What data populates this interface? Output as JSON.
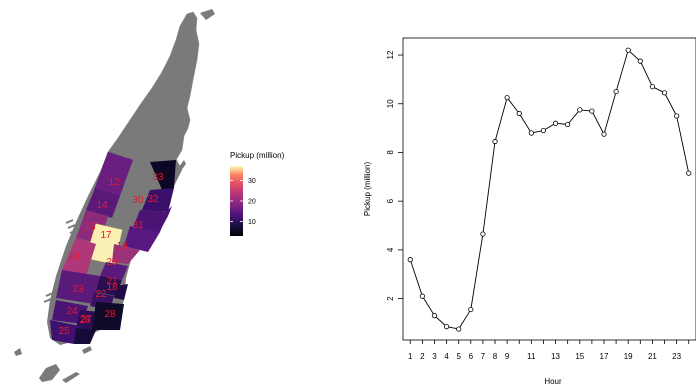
{
  "colors": {
    "land_gray": "#7a7a7a",
    "zone_label": "#e8192c",
    "line": "#000000",
    "legend_low": "#000004",
    "legend_high": "#fcfdbf"
  },
  "map": {
    "legend": {
      "title": "Pickup (million)",
      "ticks": [
        "10",
        "20",
        "30"
      ],
      "tick_values": [
        10,
        20,
        30
      ],
      "range": [
        3,
        37
      ]
    },
    "zone_labels": [
      {
        "id": "12",
        "color": "#6a1f80"
      },
      {
        "id": "33",
        "color": "#0b0724"
      },
      {
        "id": "14",
        "color": "#5c1a78"
      },
      {
        "id": "32",
        "color": "#3c0f6b"
      },
      {
        "id": "30",
        "color": "#4b1374"
      },
      {
        "id": "15",
        "color": "#8b2b7a"
      },
      {
        "id": "17",
        "color": "#fbf0b4"
      },
      {
        "id": "31",
        "color": "#571880"
      },
      {
        "id": "13",
        "color": "#b0377a"
      },
      {
        "id": "19",
        "color": "#9a3279"
      },
      {
        "id": "20",
        "color": "#5a1a7d"
      },
      {
        "id": "23",
        "color": "#5a1a7a"
      },
      {
        "id": "21",
        "color": "#2a0f52"
      },
      {
        "id": "22",
        "color": "#3a1265"
      },
      {
        "id": "18",
        "color": "#1f0b45"
      },
      {
        "id": "24",
        "color": "#4a1474"
      },
      {
        "id": "26",
        "color": "#2c0d58"
      },
      {
        "id": "28",
        "color": "#0e0a28"
      },
      {
        "id": "25",
        "color": "#3f1170"
      },
      {
        "id": "27",
        "color": "#160b38"
      }
    ]
  },
  "chart_data": {
    "type": "line",
    "xlabel": "Hour",
    "ylabel": "Pickup (million)",
    "x": [
      1,
      2,
      3,
      4,
      5,
      6,
      7,
      8,
      9,
      10,
      11,
      12,
      13,
      14,
      15,
      16,
      17,
      18,
      19,
      20,
      21,
      22,
      23,
      24
    ],
    "values": [
      3.6,
      2.1,
      1.3,
      0.85,
      0.75,
      1.55,
      4.65,
      8.45,
      10.25,
      9.6,
      8.8,
      8.9,
      9.2,
      9.15,
      9.75,
      9.7,
      8.75,
      10.5,
      12.2,
      11.75,
      10.7,
      10.45,
      9.5,
      7.15
    ],
    "x_tick_labels": [
      "1",
      "2",
      "3",
      "4",
      "5",
      "6",
      "7",
      "8",
      "9",
      "11",
      "13",
      "15",
      "17",
      "19",
      "21",
      "23"
    ],
    "x_tick_values": [
      1,
      2,
      3,
      4,
      5,
      6,
      7,
      8,
      9,
      11,
      13,
      15,
      17,
      19,
      21,
      23
    ],
    "y_tick_labels": [
      "2",
      "4",
      "6",
      "8",
      "10",
      "12"
    ],
    "y_tick_values": [
      2,
      4,
      6,
      8,
      10,
      12
    ],
    "xlim": [
      0.4,
      24.6
    ],
    "ylim": [
      0.3,
      12.7
    ],
    "grid": false,
    "markers": "open-circle"
  }
}
